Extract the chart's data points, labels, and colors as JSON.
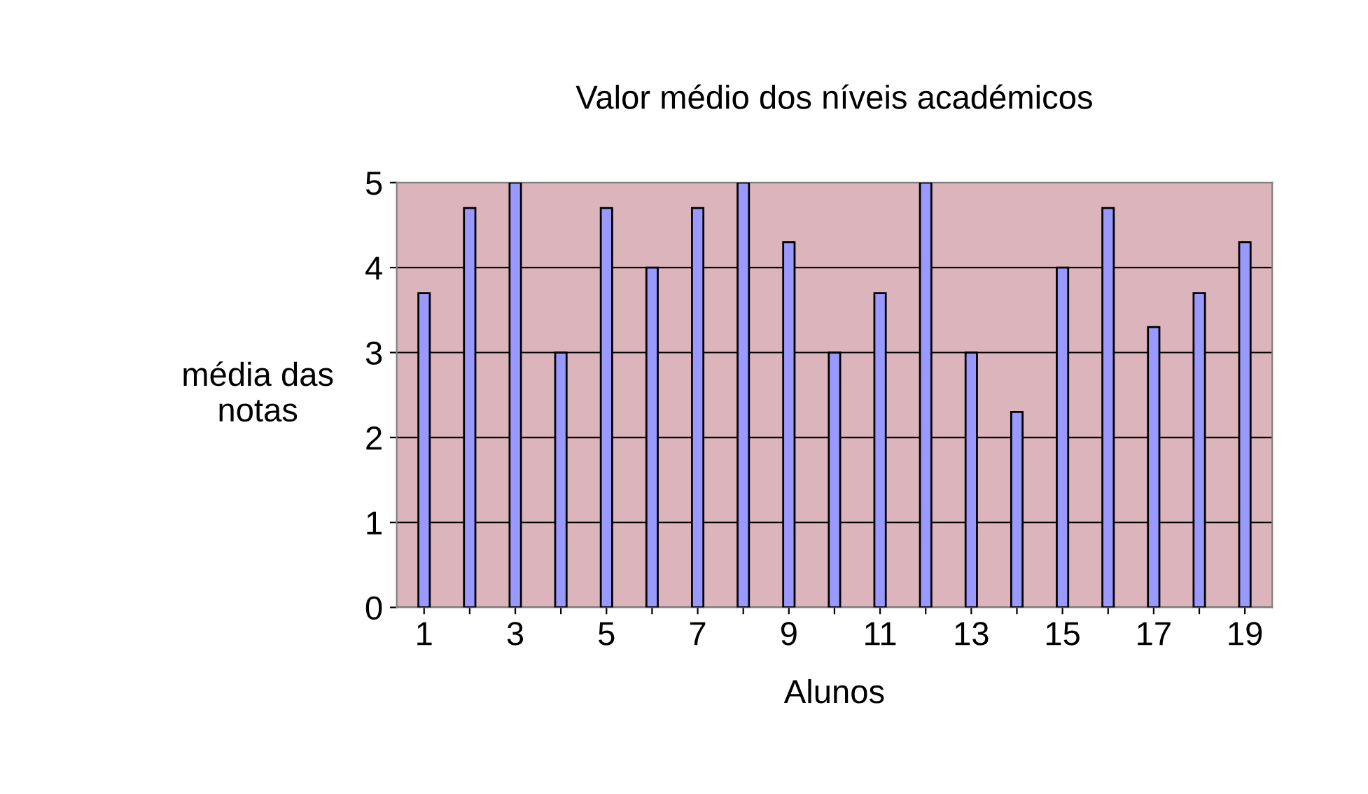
{
  "chart_data": {
    "type": "bar",
    "title": "Valor médio dos níveis académicos",
    "xlabel": "Alunos",
    "ylabel": "média das\nnotas",
    "categories": [
      "1",
      null,
      "3",
      null,
      "5",
      null,
      "7",
      null,
      "9",
      null,
      "11",
      null,
      "13",
      null,
      "15",
      null,
      "17",
      null,
      "19"
    ],
    "values": [
      3.7,
      4.7,
      5,
      3,
      4.7,
      4,
      4.7,
      5,
      4.3,
      3,
      3.7,
      5,
      3,
      2.3,
      4,
      4.7,
      3.3,
      3.7,
      4.3
    ],
    "color": "#9999ff",
    "ylim": [
      0,
      5
    ],
    "yticks": [
      0,
      1,
      2,
      3,
      4,
      5
    ],
    "grid": "y",
    "legend": false
  }
}
